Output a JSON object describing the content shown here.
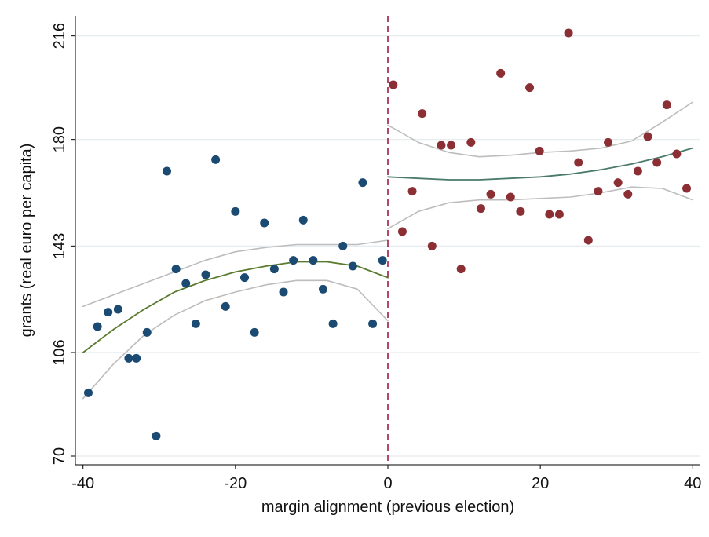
{
  "chart_data": {
    "type": "scatter",
    "title": "",
    "xlabel": "margin alignment (previous election)",
    "ylabel": "grants (real euro per capita)",
    "xlim": [
      -41,
      41
    ],
    "ylim": [
      67,
      223
    ],
    "xticks": [
      -40,
      -20,
      0,
      20,
      40
    ],
    "yticks": [
      70,
      106,
      143,
      180,
      216
    ],
    "grid": true,
    "legend": "none",
    "cutoff": 0,
    "series": [
      {
        "kind": "points",
        "color": "#1b4a72",
        "points": [
          [
            -39.3,
            92
          ],
          [
            -38.1,
            115
          ],
          [
            -36.7,
            120
          ],
          [
            -35.4,
            121
          ],
          [
            -34,
            104
          ],
          [
            -33,
            104
          ],
          [
            -31.6,
            113
          ],
          [
            -30.4,
            77
          ],
          [
            -29,
            169
          ],
          [
            -27.8,
            135
          ],
          [
            -26.5,
            130
          ],
          [
            -25.2,
            116
          ],
          [
            -23.9,
            133
          ],
          [
            -22.6,
            173
          ],
          [
            -21.3,
            122
          ],
          [
            -20,
            155
          ],
          [
            -18.8,
            132
          ],
          [
            -17.5,
            113
          ],
          [
            -16.2,
            151
          ],
          [
            -14.9,
            135
          ],
          [
            -13.7,
            127
          ],
          [
            -12.4,
            138
          ],
          [
            -11.1,
            152
          ],
          [
            -9.8,
            138
          ],
          [
            -8.5,
            128
          ],
          [
            -7.2,
            116
          ],
          [
            -5.9,
            143
          ],
          [
            -4.6,
            136
          ],
          [
            -3.3,
            165
          ],
          [
            -2,
            116
          ],
          [
            -0.7,
            138
          ]
        ]
      },
      {
        "kind": "points",
        "color": "#8b2f35",
        "points": [
          [
            0.7,
            199
          ],
          [
            1.9,
            148
          ],
          [
            3.2,
            162
          ],
          [
            4.5,
            189
          ],
          [
            5.8,
            143
          ],
          [
            7,
            178
          ],
          [
            8.3,
            178
          ],
          [
            9.6,
            135
          ],
          [
            10.9,
            179
          ],
          [
            12.2,
            156
          ],
          [
            13.5,
            161
          ],
          [
            14.8,
            203
          ],
          [
            16.1,
            160
          ],
          [
            17.4,
            155
          ],
          [
            18.6,
            198
          ],
          [
            19.9,
            176
          ],
          [
            21.2,
            154
          ],
          [
            22.5,
            154
          ],
          [
            23.7,
            217
          ],
          [
            25,
            172
          ],
          [
            26.3,
            145
          ],
          [
            27.6,
            162
          ],
          [
            28.9,
            179
          ],
          [
            30.2,
            165
          ],
          [
            31.5,
            161
          ],
          [
            32.8,
            169
          ],
          [
            34.1,
            181
          ],
          [
            35.3,
            172
          ],
          [
            36.6,
            192
          ],
          [
            37.9,
            175
          ],
          [
            39.2,
            163
          ]
        ]
      },
      {
        "kind": "fit",
        "color": "#5a7a2e",
        "points": [
          [
            -40,
            106
          ],
          [
            -36,
            114
          ],
          [
            -32,
            121
          ],
          [
            -28,
            127
          ],
          [
            -24,
            131
          ],
          [
            -20,
            134
          ],
          [
            -16,
            136
          ],
          [
            -12,
            137.5
          ],
          [
            -8,
            137.5
          ],
          [
            -4,
            136
          ],
          [
            0,
            132
          ]
        ]
      },
      {
        "kind": "ci",
        "color": "#bdbdbd",
        "points": [
          [
            -40,
            122
          ],
          [
            -36,
            126
          ],
          [
            -32,
            130
          ],
          [
            -28,
            134
          ],
          [
            -24,
            138
          ],
          [
            -20,
            141
          ],
          [
            -16,
            142.5
          ],
          [
            -12,
            143.5
          ],
          [
            -8,
            143.5
          ],
          [
            -4,
            143.5
          ],
          [
            0,
            145
          ]
        ]
      },
      {
        "kind": "ci",
        "color": "#bdbdbd",
        "points": [
          [
            -40,
            90
          ],
          [
            -36,
            102
          ],
          [
            -32,
            112
          ],
          [
            -28,
            119
          ],
          [
            -24,
            124
          ],
          [
            -20,
            127
          ],
          [
            -16,
            129.5
          ],
          [
            -12,
            131
          ],
          [
            -8,
            131
          ],
          [
            -4,
            128
          ],
          [
            0,
            117
          ]
        ]
      },
      {
        "kind": "fit",
        "color": "#4a7a6a",
        "points": [
          [
            0,
            167
          ],
          [
            4,
            166.5
          ],
          [
            8,
            166
          ],
          [
            12,
            166
          ],
          [
            16,
            166.5
          ],
          [
            20,
            167
          ],
          [
            24,
            168
          ],
          [
            28,
            169.5
          ],
          [
            32,
            171.5
          ],
          [
            36,
            174
          ],
          [
            40,
            177
          ]
        ]
      },
      {
        "kind": "ci",
        "color": "#bdbdbd",
        "points": [
          [
            0,
            185
          ],
          [
            4,
            179
          ],
          [
            8,
            175.5
          ],
          [
            12,
            174
          ],
          [
            16,
            174.5
          ],
          [
            20,
            175.5
          ],
          [
            24,
            176
          ],
          [
            28,
            177
          ],
          [
            32,
            179.5
          ],
          [
            36,
            186
          ],
          [
            40,
            193
          ]
        ]
      },
      {
        "kind": "ci",
        "color": "#bdbdbd",
        "points": [
          [
            0,
            149
          ],
          [
            4,
            155
          ],
          [
            8,
            158
          ],
          [
            12,
            159
          ],
          [
            16,
            159
          ],
          [
            20,
            159.5
          ],
          [
            24,
            160
          ],
          [
            28,
            161.5
          ],
          [
            32,
            163.5
          ],
          [
            36,
            163
          ],
          [
            40,
            159
          ]
        ]
      }
    ]
  }
}
